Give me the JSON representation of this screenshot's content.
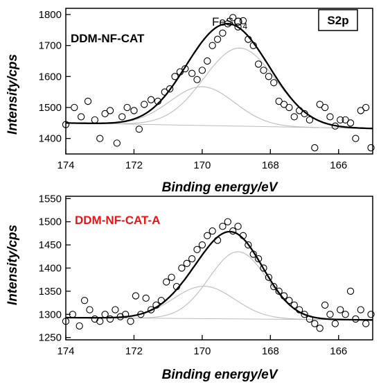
{
  "chart_data": [
    {
      "type": "scatter",
      "title": "",
      "sample_label": "DDM-NF-CAT",
      "sample_label_color": "#000000",
      "species_label": "FeSO",
      "species_subscript": "4",
      "orbital_label": "S2p",
      "xlabel": "Binding energy/eV",
      "ylabel": "Intensity/cps",
      "xlim": [
        174,
        165
      ],
      "ylim": [
        1350,
        1820
      ],
      "x_ticks": [
        174,
        172,
        170,
        168,
        166
      ],
      "y_ticks": [
        1400,
        1500,
        1600,
        1700,
        1800
      ],
      "background": {
        "type": "linear",
        "y_at_174": 1450,
        "y_at_165": 1432
      },
      "components": [
        {
          "center": 168.9,
          "height": 252,
          "sigma": 1.05
        },
        {
          "center": 170.0,
          "height": 125,
          "sigma": 0.95
        }
      ],
      "series": [
        {
          "style": "open-circles",
          "x": [
            174.0,
            173.75,
            173.55,
            173.35,
            173.15,
            173.0,
            172.85,
            172.7,
            172.5,
            172.35,
            172.2,
            172.0,
            171.85,
            171.7,
            171.5,
            171.3,
            171.1,
            170.95,
            170.8,
            170.65,
            170.5,
            170.3,
            170.15,
            170.0,
            169.85,
            169.7,
            169.55,
            169.4,
            169.25,
            169.1,
            168.95,
            168.8,
            168.65,
            168.5,
            168.35,
            168.2,
            168.05,
            167.9,
            167.75,
            167.6,
            167.45,
            167.3,
            167.15,
            167.0,
            166.85,
            166.7,
            166.55,
            166.4,
            166.25,
            166.1,
            165.95,
            165.8,
            165.65,
            165.5,
            165.35,
            165.2,
            165.05
          ],
          "y": [
            1445,
            1500,
            1470,
            1520,
            1460,
            1400,
            1480,
            1490,
            1385,
            1470,
            1500,
            1490,
            1430,
            1510,
            1525,
            1520,
            1550,
            1560,
            1600,
            1615,
            1625,
            1610,
            1590,
            1620,
            1650,
            1700,
            1720,
            1740,
            1770,
            1790,
            1760,
            1780,
            1720,
            1700,
            1640,
            1620,
            1600,
            1580,
            1520,
            1510,
            1500,
            1470,
            1490,
            1480,
            1460,
            1370,
            1510,
            1500,
            1470,
            1440,
            1460,
            1460,
            1450,
            1400,
            1490,
            1500,
            1370
          ]
        }
      ],
      "fit_color": "#000000",
      "component_color": "#bbbbbb"
    },
    {
      "type": "scatter",
      "title": "",
      "sample_label": "DDM-NF-CAT-A",
      "sample_label_color": "#ee1111",
      "xlabel": "Binding energy/eV",
      "ylabel": "Intensity/cps",
      "xlim": [
        174,
        165
      ],
      "ylim": [
        1245,
        1555
      ],
      "x_ticks": [
        174,
        172,
        170,
        168,
        166
      ],
      "y_ticks": [
        1250,
        1300,
        1350,
        1400,
        1450,
        1500,
        1550
      ],
      "background": {
        "type": "linear",
        "y_at_174": 1293,
        "y_at_165": 1288
      },
      "components": [
        {
          "center": 168.95,
          "height": 145,
          "sigma": 0.85
        },
        {
          "center": 169.95,
          "height": 70,
          "sigma": 0.9
        }
      ],
      "series": [
        {
          "style": "open-circles",
          "x": [
            174.0,
            173.8,
            173.6,
            173.45,
            173.3,
            173.15,
            173.0,
            172.85,
            172.7,
            172.55,
            172.4,
            172.25,
            172.1,
            171.95,
            171.8,
            171.65,
            171.5,
            171.35,
            171.2,
            171.05,
            170.9,
            170.75,
            170.6,
            170.45,
            170.3,
            170.15,
            170.0,
            169.85,
            169.7,
            169.55,
            169.4,
            169.25,
            169.1,
            168.95,
            168.8,
            168.65,
            168.5,
            168.35,
            168.2,
            168.05,
            167.9,
            167.75,
            167.6,
            167.45,
            167.3,
            167.15,
            167.0,
            166.85,
            166.7,
            166.55,
            166.4,
            166.25,
            166.1,
            165.95,
            165.8,
            165.65,
            165.5,
            165.35,
            165.2,
            165.05
          ],
          "y": [
            1285,
            1300,
            1275,
            1330,
            1310,
            1290,
            1285,
            1300,
            1290,
            1310,
            1295,
            1300,
            1285,
            1340,
            1300,
            1335,
            1310,
            1320,
            1330,
            1370,
            1380,
            1360,
            1400,
            1410,
            1420,
            1440,
            1450,
            1470,
            1480,
            1460,
            1490,
            1500,
            1480,
            1490,
            1470,
            1450,
            1430,
            1420,
            1400,
            1380,
            1360,
            1350,
            1340,
            1330,
            1320,
            1310,
            1300,
            1290,
            1280,
            1270,
            1320,
            1300,
            1280,
            1310,
            1300,
            1350,
            1290,
            1310,
            1280,
            1300
          ]
        }
      ],
      "fit_color": "#000000",
      "component_color": "#bbbbbb"
    }
  ]
}
